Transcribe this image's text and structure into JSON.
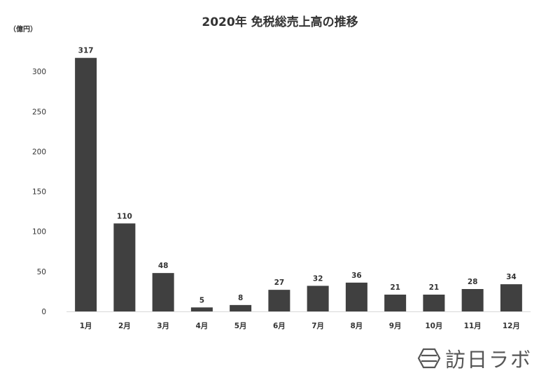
{
  "chart_data": {
    "type": "bar",
    "title": "2020年 免税総売上高の推移",
    "unit_label": "（億円）",
    "categories": [
      "1月",
      "2月",
      "3月",
      "4月",
      "5月",
      "6月",
      "7月",
      "8月",
      "9月",
      "10月",
      "11月",
      "12月"
    ],
    "values": [
      317,
      110,
      48,
      5,
      8,
      27,
      32,
      36,
      21,
      21,
      28,
      34
    ],
    "ylim": [
      0,
      350
    ],
    "yticks": [
      0,
      50,
      100,
      150,
      200,
      250,
      300
    ],
    "grid": false,
    "legend": "none",
    "bar_color": "#404040"
  },
  "logo": {
    "text": "訪日ラボ",
    "icon": "hexagon-logo-icon"
  }
}
